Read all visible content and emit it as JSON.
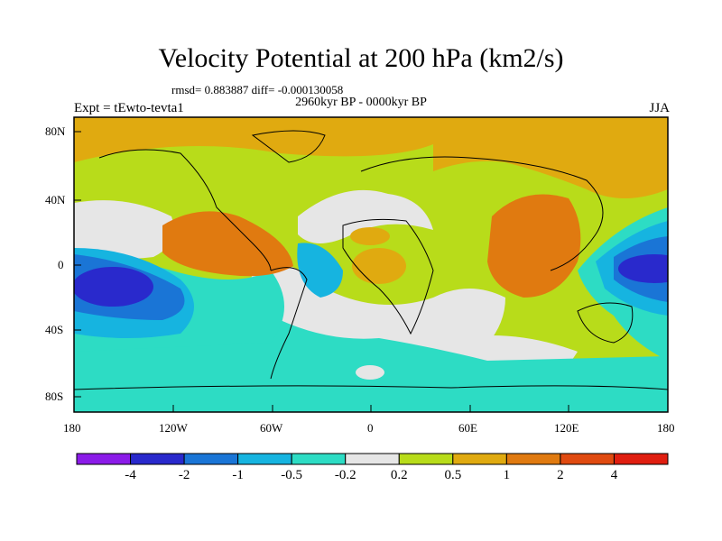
{
  "title": "Velocity Potential at 200 hPa (km2/s)",
  "stats": "rmsd= 0.883887 diff= -0.000130058",
  "period": "2960kyr BP - 0000kyr BP",
  "experiment": "Expt = tEwto-tevta1",
  "season": "JJA",
  "chart_data": {
    "type": "heatmap",
    "projection": "cylindrical-equidistant",
    "x_ticks": [
      "180",
      "120W",
      "60W",
      "0",
      "60E",
      "120E",
      "180"
    ],
    "y_ticks": [
      "80N",
      "40N",
      "0",
      "40S",
      "80S"
    ],
    "xlim": [
      -180,
      180
    ],
    "ylim": [
      -90,
      90
    ],
    "colorbar": {
      "labels": [
        "-4",
        "-2",
        "-1",
        "-0.5",
        "-0.2",
        "0.2",
        "0.5",
        "1",
        "2",
        "4"
      ],
      "colors": [
        "#8b1be8",
        "#2929cc",
        "#1a75d6",
        "#16b4e0",
        "#2ddcc4",
        "#e6e6e6",
        "#b8dc1a",
        "#e0aa10",
        "#e07a10",
        "#e04a10",
        "#e01e10"
      ]
    },
    "field_regions": [
      {
        "level": "1",
        "color": "#e0aa10",
        "name": "north-high-lat"
      },
      {
        "level": "2",
        "color": "#e07a10",
        "name": "central-america-max"
      },
      {
        "level": "2",
        "color": "#e07a10",
        "name": "indian-ocean-max"
      },
      {
        "level": "-2",
        "color": "#2929cc",
        "name": "east-pacific-min"
      },
      {
        "level": "-2",
        "color": "#2929cc",
        "name": "west-pacific-min"
      },
      {
        "level": "-0.2",
        "color": "#2ddcc4",
        "name": "southern-ocean-band"
      }
    ]
  }
}
